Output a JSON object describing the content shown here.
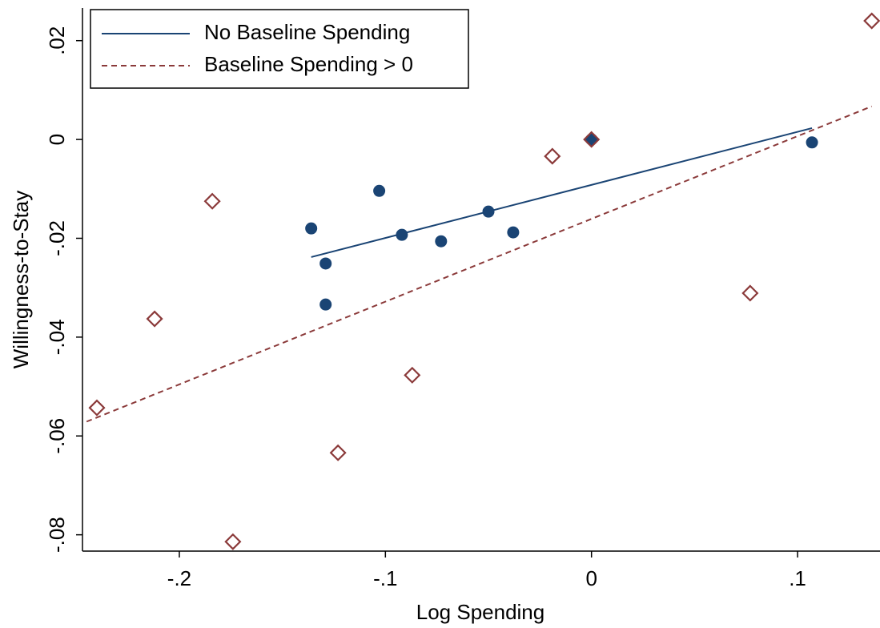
{
  "chart_data": {
    "type": "scatter",
    "xlabel": "Log Spending",
    "ylabel": "Willingness-to-Stay",
    "xlim": [
      -0.247,
      0.14
    ],
    "ylim": [
      -0.0833,
      0.0266
    ],
    "xticks": [
      {
        "value": -0.2,
        "label": "-.2"
      },
      {
        "value": -0.1,
        "label": "-.1"
      },
      0,
      {
        "value": 0.1,
        "label": ".1"
      }
    ],
    "yticks": [
      {
        "value": -0.08,
        "label": "-.08"
      },
      {
        "value": -0.06,
        "label": "-.06"
      },
      {
        "value": -0.04,
        "label": "-.04"
      },
      {
        "value": -0.02,
        "label": "-.02"
      },
      0,
      {
        "value": 0.02,
        "label": ".02"
      }
    ],
    "legend": "top-left",
    "series": [
      {
        "name": "No Baseline Spending",
        "color": "#1a4474",
        "marker": "circle",
        "dash": false,
        "x": [
          -0.136,
          -0.129,
          -0.129,
          -0.103,
          -0.092,
          -0.073,
          -0.05,
          -0.038,
          0.0,
          0.107
        ],
        "values": [
          -0.018,
          -0.0251,
          -0.0334,
          -0.0104,
          -0.0193,
          -0.0206,
          -0.0146,
          -0.0188,
          0.0,
          -0.0006
        ],
        "fit": {
          "x": [
            -0.136,
            0.107
          ],
          "values": [
            -0.0238,
            0.0023
          ]
        }
      },
      {
        "name": "Baseline Spending > 0",
        "color": "#8b3a3a",
        "marker": "diamond",
        "dash": true,
        "x": [
          -0.24,
          -0.212,
          -0.184,
          -0.174,
          -0.123,
          -0.087,
          -0.019,
          0.0,
          0.077,
          0.136
        ],
        "values": [
          -0.0543,
          -0.0363,
          -0.0125,
          -0.0814,
          -0.0634,
          -0.0477,
          -0.0034,
          0.0,
          -0.0311,
          0.024
        ],
        "fit": {
          "x": [
            -0.245,
            0.136
          ],
          "values": [
            -0.0571,
            0.0067
          ]
        }
      }
    ]
  }
}
